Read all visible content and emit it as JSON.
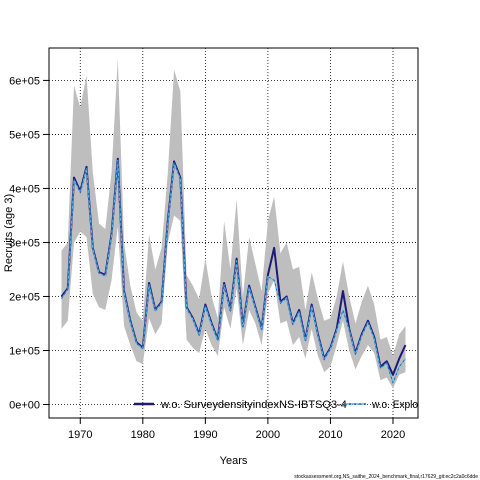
{
  "chart_data": {
    "type": "line",
    "xlabel": "Years",
    "ylabel": "Recruits (age 3)",
    "xlim": [
      1965,
      2024
    ],
    "ylim": [
      -25000,
      660000
    ],
    "x_ticks": [
      1970,
      1980,
      1990,
      2000,
      2010,
      2020
    ],
    "y_ticks": [
      0,
      100000,
      200000,
      300000,
      400000,
      500000,
      600000
    ],
    "y_tick_labels": [
      "0e+00",
      "1e+05",
      "2e+05",
      "3e+05",
      "4e+05",
      "5e+05",
      "6e+05"
    ],
    "grid": true,
    "legend_position": "bottom",
    "x": [
      1967,
      1968,
      1969,
      1970,
      1971,
      1972,
      1973,
      1974,
      1975,
      1976,
      1977,
      1978,
      1979,
      1980,
      1981,
      1982,
      1983,
      1984,
      1985,
      1986,
      1987,
      1988,
      1989,
      1990,
      1991,
      1992,
      1993,
      1994,
      1995,
      1996,
      1997,
      1998,
      1999,
      2000,
      2001,
      2002,
      2003,
      2004,
      2005,
      2006,
      2007,
      2008,
      2009,
      2010,
      2011,
      2012,
      2013,
      2014,
      2015,
      2016,
      2017,
      2018,
      2019,
      2020,
      2021,
      2022
    ],
    "band": {
      "color": "#bebebe",
      "upper": [
        285000,
        300000,
        590000,
        550000,
        610000,
        430000,
        335000,
        325000,
        430000,
        640000,
        300000,
        220000,
        170000,
        155000,
        315000,
        250000,
        290000,
        430000,
        620000,
        580000,
        240000,
        220000,
        195000,
        270000,
        200000,
        160000,
        340000,
        250000,
        380000,
        200000,
        310000,
        260000,
        210000,
        340000,
        385000,
        280000,
        300000,
        250000,
        255000,
        175000,
        245000,
        195000,
        155000,
        160000,
        200000,
        265000,
        200000,
        150000,
        190000,
        220000,
        185000,
        120000,
        125000,
        90000,
        130000,
        145000
      ],
      "lower": [
        140000,
        155000,
        300000,
        320000,
        310000,
        205000,
        180000,
        175000,
        230000,
        330000,
        145000,
        110000,
        80000,
        75000,
        160000,
        130000,
        150000,
        300000,
        350000,
        340000,
        120000,
        105000,
        95000,
        140000,
        110000,
        90000,
        180000,
        140000,
        215000,
        110000,
        175000,
        150000,
        110000,
        205000,
        230000,
        150000,
        155000,
        110000,
        125000,
        85000,
        140000,
        90000,
        60000,
        70000,
        110000,
        155000,
        100000,
        65000,
        90000,
        110000,
        95000,
        45000,
        50000,
        30000,
        55000,
        60000
      ]
    },
    "series": [
      {
        "name": "w.o. SurveydensityindexNS-IBTSQ3-4",
        "color": "#1d1a78",
        "width": 2,
        "values": [
          200000,
          215000,
          420000,
          395000,
          440000,
          290000,
          245000,
          240000,
          315000,
          455000,
          210000,
          155000,
          115000,
          105000,
          225000,
          175000,
          190000,
          340000,
          450000,
          420000,
          180000,
          160000,
          130000,
          185000,
          150000,
          120000,
          225000,
          175000,
          270000,
          145000,
          220000,
          180000,
          140000,
          240000,
          290000,
          190000,
          200000,
          150000,
          175000,
          120000,
          185000,
          130000,
          85000,
          105000,
          140000,
          210000,
          140000,
          95000,
          130000,
          155000,
          125000,
          70000,
          80000,
          55000,
          85000,
          110000
        ]
      },
      {
        "name": "w.o. Explo",
        "color": "#56b4e9",
        "width": 1.2,
        "dashed": true,
        "values": [
          196000,
          213000,
          416000,
          392000,
          437000,
          288000,
          243000,
          238000,
          312000,
          452000,
          208000,
          153000,
          113000,
          103000,
          222000,
          173000,
          188000,
          337000,
          447000,
          417000,
          178000,
          158000,
          128000,
          182000,
          148000,
          118000,
          222000,
          172000,
          266000,
          143000,
          217000,
          178000,
          138000,
          237000,
          230000,
          187000,
          198000,
          148000,
          172000,
          118000,
          182000,
          128000,
          83000,
          103000,
          137000,
          175000,
          138000,
          93000,
          127000,
          152000,
          122000,
          67000,
          77000,
          40000,
          70000,
          85000
        ]
      }
    ]
  },
  "footer": "stockassessment.org,NS_saithe_2024_benchmark_final,r17629_git:ec2c2a0c6dde"
}
